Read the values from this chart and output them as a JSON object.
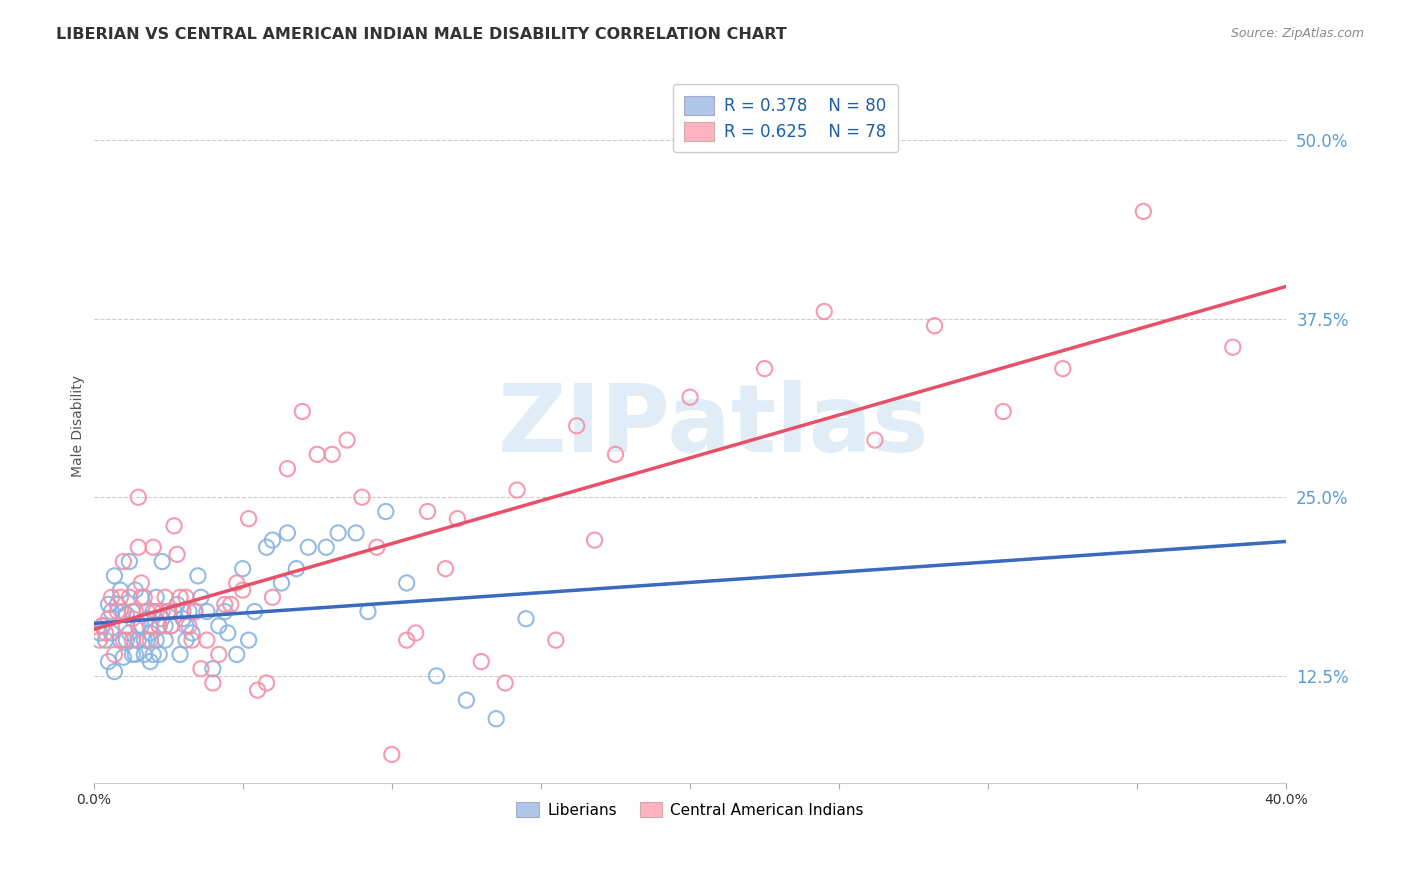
{
  "title": "LIBERIAN VS CENTRAL AMERICAN INDIAN MALE DISABILITY CORRELATION CHART",
  "source": "Source: ZipAtlas.com",
  "ylabel": "Male Disability",
  "ytick_vals": [
    0.125,
    0.25,
    0.375,
    0.5
  ],
  "xlim": [
    0.0,
    0.4
  ],
  "ylim": [
    0.05,
    0.55
  ],
  "liberian_color": "none",
  "liberian_edge": "#89b4e0",
  "central_am_color": "none",
  "central_am_edge": "#f78fa7",
  "liberian_line_color": "#3a6bbf",
  "central_am_line_color": "#e8506a",
  "dashed_line_color": "#aaccdd",
  "R_liberian": 0.378,
  "N_liberian": 80,
  "R_central": 0.625,
  "N_central": 78,
  "watermark": "ZIPatlas",
  "background_color": "#ffffff",
  "grid_color": "#cccccc",
  "legend_label_1": "Liberians",
  "legend_label_2": "Central American Indians",
  "legend_box_color": "#aec6e8",
  "legend_box_color2": "#ffb3c1",
  "ytick_color": "#5b9bd5",
  "liberian_scatter": [
    [
      0.002,
      0.155
    ],
    [
      0.003,
      0.16
    ],
    [
      0.004,
      0.15
    ],
    [
      0.005,
      0.135
    ],
    [
      0.005,
      0.175
    ],
    [
      0.006,
      0.17
    ],
    [
      0.006,
      0.155
    ],
    [
      0.007,
      0.195
    ],
    [
      0.007,
      0.128
    ],
    [
      0.008,
      0.175
    ],
    [
      0.009,
      0.185
    ],
    [
      0.009,
      0.15
    ],
    [
      0.01,
      0.17
    ],
    [
      0.01,
      0.138
    ],
    [
      0.011,
      0.15
    ],
    [
      0.011,
      0.168
    ],
    [
      0.012,
      0.155
    ],
    [
      0.012,
      0.205
    ],
    [
      0.013,
      0.14
    ],
    [
      0.013,
      0.17
    ],
    [
      0.014,
      0.14
    ],
    [
      0.014,
      0.185
    ],
    [
      0.015,
      0.16
    ],
    [
      0.015,
      0.15
    ],
    [
      0.016,
      0.18
    ],
    [
      0.016,
      0.16
    ],
    [
      0.017,
      0.14
    ],
    [
      0.017,
      0.15
    ],
    [
      0.018,
      0.165
    ],
    [
      0.018,
      0.15
    ],
    [
      0.019,
      0.155
    ],
    [
      0.019,
      0.135
    ],
    [
      0.02,
      0.14
    ],
    [
      0.02,
      0.17
    ],
    [
      0.021,
      0.15
    ],
    [
      0.021,
      0.18
    ],
    [
      0.022,
      0.16
    ],
    [
      0.022,
      0.14
    ],
    [
      0.023,
      0.165
    ],
    [
      0.023,
      0.205
    ],
    [
      0.024,
      0.15
    ],
    [
      0.024,
      0.16
    ],
    [
      0.025,
      0.17
    ],
    [
      0.026,
      0.16
    ],
    [
      0.027,
      0.17
    ],
    [
      0.028,
      0.175
    ],
    [
      0.029,
      0.14
    ],
    [
      0.03,
      0.165
    ],
    [
      0.031,
      0.15
    ],
    [
      0.031,
      0.16
    ],
    [
      0.032,
      0.17
    ],
    [
      0.033,
      0.155
    ],
    [
      0.034,
      0.17
    ],
    [
      0.035,
      0.195
    ],
    [
      0.036,
      0.18
    ],
    [
      0.038,
      0.17
    ],
    [
      0.04,
      0.13
    ],
    [
      0.042,
      0.16
    ],
    [
      0.044,
      0.17
    ],
    [
      0.045,
      0.155
    ],
    [
      0.048,
      0.14
    ],
    [
      0.05,
      0.2
    ],
    [
      0.052,
      0.15
    ],
    [
      0.054,
      0.17
    ],
    [
      0.058,
      0.215
    ],
    [
      0.06,
      0.22
    ],
    [
      0.063,
      0.19
    ],
    [
      0.065,
      0.225
    ],
    [
      0.068,
      0.2
    ],
    [
      0.072,
      0.215
    ],
    [
      0.078,
      0.215
    ],
    [
      0.082,
      0.225
    ],
    [
      0.088,
      0.225
    ],
    [
      0.092,
      0.17
    ],
    [
      0.098,
      0.24
    ],
    [
      0.105,
      0.19
    ],
    [
      0.115,
      0.125
    ],
    [
      0.125,
      0.108
    ],
    [
      0.135,
      0.095
    ],
    [
      0.145,
      0.165
    ]
  ],
  "central_scatter": [
    [
      0.002,
      0.15
    ],
    [
      0.003,
      0.16
    ],
    [
      0.004,
      0.155
    ],
    [
      0.005,
      0.165
    ],
    [
      0.006,
      0.18
    ],
    [
      0.007,
      0.14
    ],
    [
      0.008,
      0.17
    ],
    [
      0.009,
      0.18
    ],
    [
      0.01,
      0.15
    ],
    [
      0.01,
      0.205
    ],
    [
      0.011,
      0.16
    ],
    [
      0.012,
      0.18
    ],
    [
      0.013,
      0.165
    ],
    [
      0.013,
      0.15
    ],
    [
      0.014,
      0.17
    ],
    [
      0.015,
      0.25
    ],
    [
      0.015,
      0.215
    ],
    [
      0.016,
      0.19
    ],
    [
      0.017,
      0.18
    ],
    [
      0.018,
      0.17
    ],
    [
      0.019,
      0.16
    ],
    [
      0.019,
      0.15
    ],
    [
      0.02,
      0.215
    ],
    [
      0.021,
      0.17
    ],
    [
      0.022,
      0.16
    ],
    [
      0.023,
      0.17
    ],
    [
      0.024,
      0.18
    ],
    [
      0.025,
      0.17
    ],
    [
      0.026,
      0.16
    ],
    [
      0.027,
      0.23
    ],
    [
      0.028,
      0.21
    ],
    [
      0.029,
      0.18
    ],
    [
      0.03,
      0.17
    ],
    [
      0.031,
      0.18
    ],
    [
      0.032,
      0.16
    ],
    [
      0.033,
      0.15
    ],
    [
      0.034,
      0.17
    ],
    [
      0.036,
      0.13
    ],
    [
      0.038,
      0.15
    ],
    [
      0.04,
      0.12
    ],
    [
      0.042,
      0.14
    ],
    [
      0.044,
      0.175
    ],
    [
      0.046,
      0.175
    ],
    [
      0.048,
      0.19
    ],
    [
      0.05,
      0.185
    ],
    [
      0.052,
      0.235
    ],
    [
      0.055,
      0.115
    ],
    [
      0.058,
      0.12
    ],
    [
      0.06,
      0.18
    ],
    [
      0.065,
      0.27
    ],
    [
      0.07,
      0.31
    ],
    [
      0.075,
      0.28
    ],
    [
      0.08,
      0.28
    ],
    [
      0.085,
      0.29
    ],
    [
      0.09,
      0.25
    ],
    [
      0.095,
      0.215
    ],
    [
      0.1,
      0.07
    ],
    [
      0.105,
      0.15
    ],
    [
      0.108,
      0.155
    ],
    [
      0.112,
      0.24
    ],
    [
      0.118,
      0.2
    ],
    [
      0.122,
      0.235
    ],
    [
      0.13,
      0.135
    ],
    [
      0.138,
      0.12
    ],
    [
      0.142,
      0.255
    ],
    [
      0.155,
      0.15
    ],
    [
      0.162,
      0.3
    ],
    [
      0.168,
      0.22
    ],
    [
      0.175,
      0.28
    ],
    [
      0.2,
      0.32
    ],
    [
      0.225,
      0.34
    ],
    [
      0.245,
      0.38
    ],
    [
      0.262,
      0.29
    ],
    [
      0.282,
      0.37
    ],
    [
      0.305,
      0.31
    ],
    [
      0.325,
      0.34
    ],
    [
      0.352,
      0.45
    ],
    [
      0.382,
      0.355
    ]
  ]
}
